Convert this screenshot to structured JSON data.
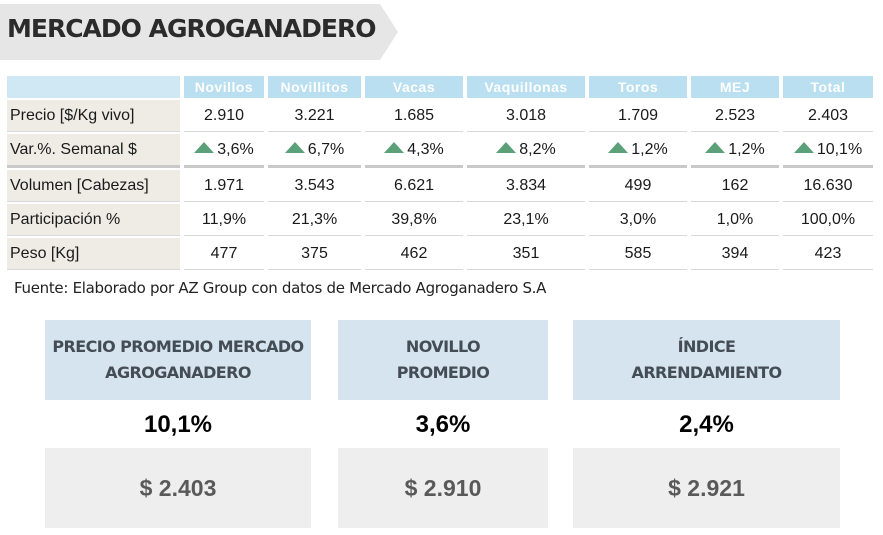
{
  "header": {
    "title": "MERCADO AGROGANADERO"
  },
  "table": {
    "columns": [
      "Novillos",
      "Novillitos",
      "Vacas",
      "Vaquillonas",
      "Toros",
      "MEJ",
      "Total"
    ],
    "rows": [
      {
        "label": "Precio [$/Kg vivo]",
        "values": [
          "2.910",
          "3.221",
          "1.685",
          "3.018",
          "1.709",
          "2.523",
          "2.403"
        ]
      },
      {
        "label": "Var.%. Semanal $",
        "values": [
          "3,6%",
          "6,7%",
          "4,3%",
          "8,2%",
          "1,2%",
          "1,2%",
          "10,1%"
        ],
        "trend": "up",
        "trend_color": "#5aa078"
      },
      {
        "label": "Volumen [Cabezas]",
        "values": [
          "1.971",
          "3.543",
          "6.621",
          "3.834",
          "499",
          "162",
          "16.630"
        ]
      },
      {
        "label": "Participación %",
        "values": [
          "11,9%",
          "21,3%",
          "39,8%",
          "23,1%",
          "3,0%",
          "1,0%",
          "100,0%"
        ]
      },
      {
        "label": "Peso [Kg]",
        "values": [
          "477",
          "375",
          "462",
          "351",
          "585",
          "394",
          "423"
        ]
      }
    ]
  },
  "source": "Fuente: Elaborado por AZ Group con datos de Mercado Agroganadero S.A",
  "cards": [
    {
      "title_line1": "PRECIO PROMEDIO MERCADO",
      "title_line2": "AGROGANADERO",
      "change": "10,1%",
      "value": "$ 2.403"
    },
    {
      "title_line1": "NOVILLO",
      "title_line2": "PROMEDIO",
      "change": "3,6%",
      "value": "$ 2.910"
    },
    {
      "title_line1": "ÍNDICE",
      "title_line2": "ARRENDAMIENTO",
      "change": "2,4%",
      "value": "$ 2.921"
    }
  ],
  "colors": {
    "header_fill": "#b9dff0",
    "row_label_fill": "#eeece5",
    "card_head_fill": "#d5e4ee",
    "card_value_fill": "#eeeeee",
    "trend_up": "#5aa078"
  }
}
